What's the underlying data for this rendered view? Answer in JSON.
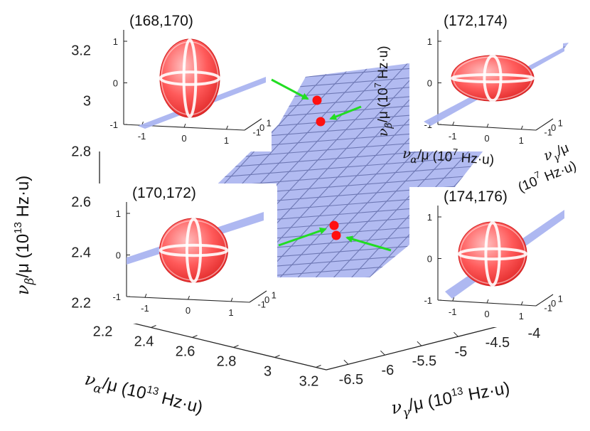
{
  "chart_data": {
    "type": "3d-surface-with-insets",
    "surface_color": "#aab4f0",
    "grid_color": "#6e78b4",
    "point_color": "#ff1010",
    "arrow_color": "#22dd22",
    "axes": {
      "z": {
        "label_sym": "ν",
        "label_sub": "β",
        "label_rest": "/μ (10",
        "label_sup": "13",
        "label_unit": " Hz·u)",
        "ticks": [
          "2.2",
          "2.4",
          "2.6",
          "2.8",
          "3",
          "3.2"
        ],
        "range": [
          2.15,
          3.3
        ]
      },
      "x": {
        "label_sym": "ν",
        "label_sub": "α",
        "label_rest": "/μ (10",
        "label_sup": "13",
        "label_unit": " Hz·u)",
        "ticks": [
          "2.2",
          "2.4",
          "2.6",
          "2.8",
          "3",
          "3.2"
        ],
        "range": [
          2.15,
          3.25
        ]
      },
      "y": {
        "label_sym": "ν",
        "label_sub": "γ",
        "label_rest": "/μ (10",
        "label_sup": "13",
        "label_unit": " Hz·u)",
        "ticks": [
          "-6.5",
          "-6",
          "-5.5",
          "-5",
          "-4.5",
          "-4"
        ],
        "range": [
          -6.8,
          -3.9
        ]
      }
    },
    "points": [
      {
        "alpha": 2.75,
        "gamma": -5.9,
        "beta": 2.97
      },
      {
        "alpha": 2.8,
        "gamma": -5.6,
        "beta": 2.92
      },
      {
        "alpha": 2.6,
        "gamma": -5.4,
        "beta": 2.49
      },
      {
        "alpha": 2.65,
        "gamma": -5.3,
        "beta": 2.45
      }
    ],
    "insets": [
      {
        "title": "(168,170)",
        "position": "top-left",
        "ellipsoid": "tall"
      },
      {
        "title": "(172,174)",
        "position": "top-right",
        "ellipsoid": "wide"
      },
      {
        "title": "(170,172)",
        "position": "bottom-left",
        "ellipsoid": "round"
      },
      {
        "title": "(174,176)",
        "position": "bottom-right",
        "ellipsoid": "round"
      }
    ],
    "inset_axes": {
      "ticks": [
        "-1",
        "0",
        "1"
      ],
      "vertical_label_sym": "ν",
      "vertical_label_sub": "β",
      "vertical_label_rest": "/μ (10",
      "vertical_label_sup": "7",
      "vertical_label_unit": " Hz·u)",
      "horizontal_label_sym": "ν",
      "horizontal_label_sub": "α",
      "horizontal_label_rest": "/μ (10",
      "horizontal_label_sup": "7",
      "horizontal_label_unit": " Hz·u)",
      "depth_label_sym": "ν",
      "depth_label_sub": "γ",
      "depth_label_rest": "/μ",
      "depth_label_line2": "(10",
      "depth_label_sup": "7",
      "depth_label_unit": " Hz·u)"
    }
  }
}
